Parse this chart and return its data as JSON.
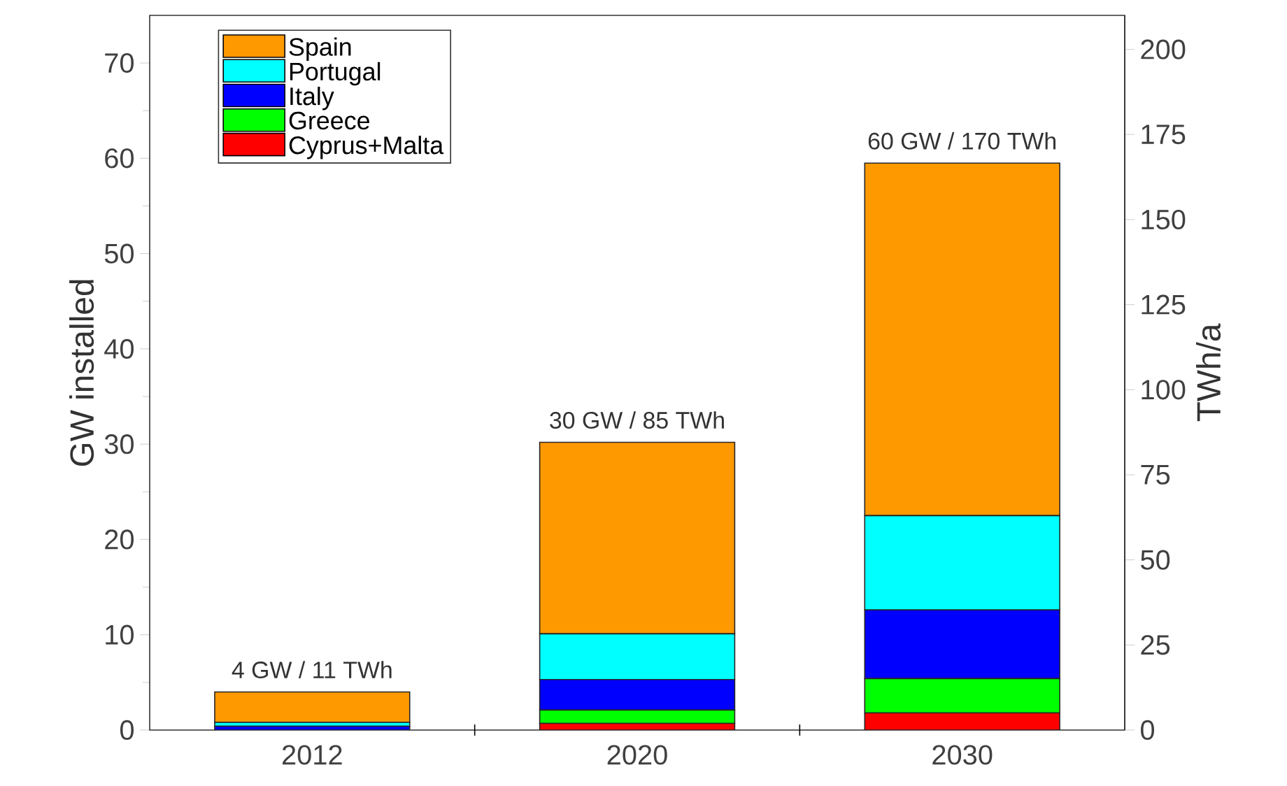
{
  "chart_data": {
    "type": "bar",
    "stacked": true,
    "ylabel": "GW installed",
    "y2label": "TWh/a",
    "categories": [
      "2012",
      "2020",
      "2030"
    ],
    "series": [
      {
        "name": "Cyprus+Malta",
        "color": "#ff0000",
        "values": [
          null,
          0.7,
          1.8
        ]
      },
      {
        "name": "Greece",
        "color": "#00ff00",
        "values": [
          null,
          1.4,
          3.6
        ]
      },
      {
        "name": "Italy",
        "color": "#0000ff",
        "values": [
          0.4,
          3.2,
          7.2
        ]
      },
      {
        "name": "Portugal",
        "color": "#00ffff",
        "values": [
          0.4,
          4.8,
          9.9
        ]
      },
      {
        "name": "Spain",
        "color": "#ff9900",
        "values": [
          3.2,
          20.1,
          37.0
        ]
      }
    ],
    "ylim": [
      0,
      75
    ],
    "yticks": [
      0,
      10,
      20,
      30,
      40,
      50,
      60,
      70
    ],
    "y2lim": [
      0,
      210
    ],
    "y2ticks": [
      0,
      25,
      50,
      75,
      100,
      125,
      150,
      175,
      200
    ],
    "annotations": [
      "4 GW / 11 TWh",
      "30 GW / 85 TWh",
      "60 GW / 170 TWh"
    ],
    "legend": "top left",
    "grid": false
  }
}
